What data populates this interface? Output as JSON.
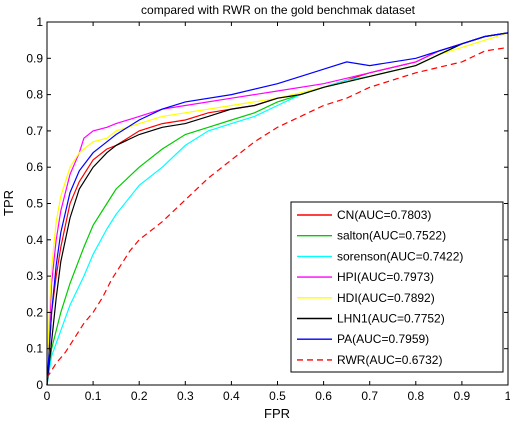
{
  "chart_data": {
    "type": "line",
    "title": "compared with RWR on the gold benchmak dataset",
    "xlabel": "FPR",
    "ylabel": "TPR",
    "xlim": [
      0,
      1
    ],
    "ylim": [
      0,
      1
    ],
    "xticks": [
      "0",
      "0.1",
      "0.2",
      "0.3",
      "0.4",
      "0.5",
      "0.6",
      "0.7",
      "0.8",
      "0.9",
      "1"
    ],
    "yticks": [
      "0",
      "0.1",
      "0.2",
      "0.3",
      "0.4",
      "0.5",
      "0.6",
      "0.7",
      "0.8",
      "0.9",
      "1"
    ],
    "grid": false,
    "legend_position": "lower-right",
    "series": [
      {
        "name": "CN(AUC=0.7803)",
        "color": "#ff0000",
        "dash": false,
        "x": [
          0,
          0.005,
          0.01,
          0.02,
          0.03,
          0.05,
          0.07,
          0.1,
          0.13,
          0.15,
          0.2,
          0.25,
          0.3,
          0.35,
          0.4,
          0.45,
          0.5,
          0.55,
          0.6,
          0.7,
          0.8,
          0.85,
          0.9,
          0.95,
          1
        ],
        "y": [
          0,
          0.1,
          0.2,
          0.3,
          0.38,
          0.5,
          0.56,
          0.62,
          0.65,
          0.66,
          0.7,
          0.72,
          0.73,
          0.75,
          0.76,
          0.77,
          0.79,
          0.8,
          0.82,
          0.86,
          0.89,
          0.92,
          0.94,
          0.96,
          0.97
        ]
      },
      {
        "name": "salton(AUC=0.7522)",
        "color": "#00cc00",
        "dash": false,
        "x": [
          0,
          0.005,
          0.01,
          0.03,
          0.05,
          0.08,
          0.1,
          0.13,
          0.15,
          0.2,
          0.25,
          0.3,
          0.35,
          0.4,
          0.45,
          0.5,
          0.55,
          0.6,
          0.7,
          0.8,
          0.85,
          0.9,
          0.95,
          1
        ],
        "y": [
          0,
          0.05,
          0.1,
          0.2,
          0.28,
          0.38,
          0.44,
          0.5,
          0.54,
          0.6,
          0.65,
          0.69,
          0.71,
          0.73,
          0.75,
          0.78,
          0.8,
          0.82,
          0.85,
          0.88,
          0.91,
          0.94,
          0.96,
          0.97
        ]
      },
      {
        "name": "sorenson(AUC=0.7422)",
        "color": "#00ffff",
        "dash": false,
        "x": [
          0,
          0.005,
          0.01,
          0.03,
          0.05,
          0.08,
          0.1,
          0.13,
          0.15,
          0.2,
          0.25,
          0.3,
          0.35,
          0.4,
          0.45,
          0.5,
          0.55,
          0.6,
          0.65,
          0.7,
          0.8,
          0.85,
          0.9,
          0.95,
          1
        ],
        "y": [
          0,
          0.04,
          0.08,
          0.15,
          0.22,
          0.3,
          0.36,
          0.43,
          0.47,
          0.55,
          0.6,
          0.66,
          0.7,
          0.72,
          0.74,
          0.77,
          0.8,
          0.82,
          0.84,
          0.85,
          0.88,
          0.91,
          0.94,
          0.96,
          0.97
        ]
      },
      {
        "name": "HPI(AUC=0.7973)",
        "color": "#ff00ff",
        "dash": false,
        "x": [
          0,
          0.005,
          0.01,
          0.02,
          0.03,
          0.05,
          0.07,
          0.08,
          0.1,
          0.13,
          0.15,
          0.2,
          0.25,
          0.3,
          0.4,
          0.5,
          0.6,
          0.7,
          0.8,
          0.85,
          0.9,
          0.95,
          1
        ],
        "y": [
          0,
          0.15,
          0.28,
          0.4,
          0.48,
          0.58,
          0.64,
          0.68,
          0.7,
          0.71,
          0.72,
          0.74,
          0.76,
          0.77,
          0.79,
          0.81,
          0.83,
          0.86,
          0.89,
          0.92,
          0.94,
          0.96,
          0.97
        ]
      },
      {
        "name": "HDI(AUC=0.7892)",
        "color": "#ffff00",
        "dash": false,
        "x": [
          0,
          0.005,
          0.01,
          0.02,
          0.03,
          0.05,
          0.07,
          0.1,
          0.13,
          0.15,
          0.2,
          0.25,
          0.3,
          0.4,
          0.5,
          0.6,
          0.7,
          0.8,
          0.85,
          0.9,
          0.95,
          1
        ],
        "y": [
          0,
          0.2,
          0.32,
          0.45,
          0.52,
          0.6,
          0.64,
          0.67,
          0.68,
          0.7,
          0.72,
          0.74,
          0.75,
          0.77,
          0.79,
          0.82,
          0.85,
          0.88,
          0.91,
          0.93,
          0.95,
          0.97
        ]
      },
      {
        "name": "LHN1(AUC=0.7752)",
        "color": "#000000",
        "dash": false,
        "x": [
          0,
          0.005,
          0.01,
          0.02,
          0.03,
          0.05,
          0.07,
          0.1,
          0.13,
          0.15,
          0.2,
          0.25,
          0.3,
          0.35,
          0.4,
          0.45,
          0.5,
          0.55,
          0.6,
          0.7,
          0.8,
          0.85,
          0.9,
          0.95,
          1
        ],
        "y": [
          0,
          0.06,
          0.12,
          0.24,
          0.34,
          0.46,
          0.54,
          0.6,
          0.64,
          0.66,
          0.69,
          0.71,
          0.72,
          0.74,
          0.76,
          0.77,
          0.79,
          0.8,
          0.82,
          0.85,
          0.88,
          0.91,
          0.94,
          0.96,
          0.97
        ]
      },
      {
        "name": "PA(AUC=0.7959)",
        "color": "#0000ff",
        "dash": false,
        "x": [
          0,
          0.005,
          0.01,
          0.02,
          0.03,
          0.05,
          0.07,
          0.1,
          0.13,
          0.15,
          0.2,
          0.25,
          0.3,
          0.4,
          0.5,
          0.55,
          0.6,
          0.65,
          0.7,
          0.8,
          0.85,
          0.9,
          0.95,
          1
        ],
        "y": [
          0,
          0.1,
          0.2,
          0.33,
          0.42,
          0.53,
          0.59,
          0.64,
          0.67,
          0.69,
          0.73,
          0.76,
          0.78,
          0.8,
          0.83,
          0.85,
          0.87,
          0.89,
          0.88,
          0.9,
          0.92,
          0.94,
          0.96,
          0.97
        ]
      },
      {
        "name": "RWR(AUC=0.6732)",
        "color": "#ff0000",
        "dash": true,
        "x": [
          0,
          0.02,
          0.04,
          0.06,
          0.08,
          0.1,
          0.12,
          0.14,
          0.16,
          0.18,
          0.2,
          0.25,
          0.3,
          0.35,
          0.4,
          0.45,
          0.5,
          0.55,
          0.6,
          0.65,
          0.7,
          0.8,
          0.9,
          0.95,
          1
        ],
        "y": [
          0.02,
          0.06,
          0.09,
          0.13,
          0.17,
          0.2,
          0.24,
          0.29,
          0.33,
          0.37,
          0.4,
          0.45,
          0.51,
          0.57,
          0.62,
          0.67,
          0.71,
          0.74,
          0.77,
          0.79,
          0.82,
          0.86,
          0.89,
          0.92,
          0.93
        ]
      }
    ]
  }
}
